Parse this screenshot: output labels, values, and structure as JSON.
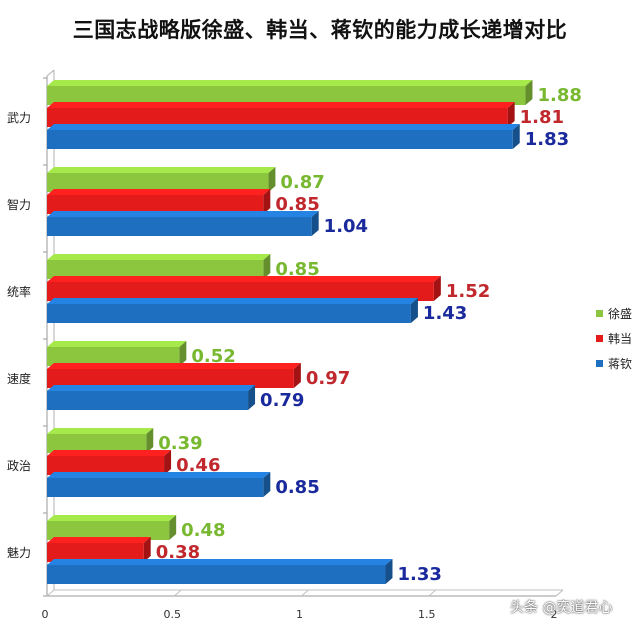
{
  "chart_data": {
    "type": "bar",
    "orientation": "horizontal",
    "title": "三国志战略版徐盛、韩当、蒋钦的能力成长递增对比",
    "categories": [
      "武力",
      "智力",
      "统率",
      "速度",
      "政治",
      "魅力"
    ],
    "series": [
      {
        "name": "徐盛",
        "color": "#8cc63f",
        "label_color": "#78b830",
        "values": [
          1.88,
          0.87,
          0.85,
          0.52,
          0.39,
          0.48
        ]
      },
      {
        "name": "韩当",
        "color": "#e31b1b",
        "label_color": "#c0282d",
        "values": [
          1.81,
          0.85,
          1.52,
          0.97,
          0.46,
          0.38
        ]
      },
      {
        "name": "蒋钦",
        "color": "#1f6fc0",
        "label_color": "#1a2a9c",
        "values": [
          1.83,
          1.04,
          1.43,
          0.79,
          0.85,
          1.33
        ]
      }
    ],
    "xlim": [
      0,
      2
    ],
    "x_ticks": [
      "0",
      "0.5",
      "1",
      "1.5",
      "2"
    ],
    "legend_position": "right",
    "grid": false
  },
  "watermark": "头条 @奕道君心"
}
